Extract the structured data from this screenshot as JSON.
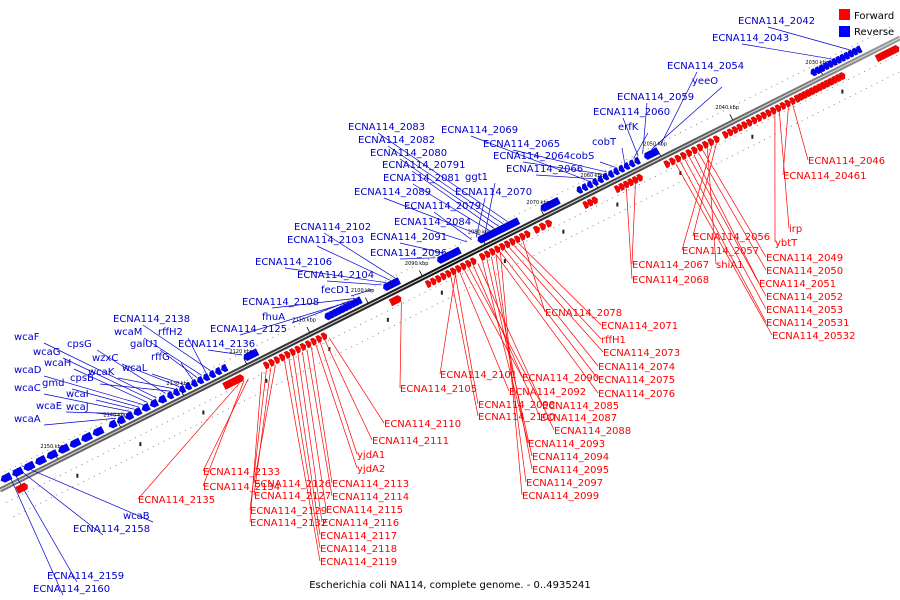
{
  "caption": "Escherichia coli NA114, complete genome. - 0..4935241",
  "legend": {
    "forward_label": "Forward",
    "reverse_label": "Reverse",
    "forward_color": "#ff0000",
    "reverse_color": "#0000ff"
  },
  "ticks": [
    "2030 kbp",
    "2040 kbp",
    "2050 kbp",
    "2060 kbp",
    "2070 kbp",
    "2080 kbp",
    "2090 kbp",
    "2100 kbp",
    "2110 kbp",
    "2120 kbp",
    "2130 kbp",
    "2140 kbp",
    "2150 kbp"
  ],
  "reverse_labels": [
    "ECNA114_2042",
    "ECNA114_2043",
    "ECNA114_2054",
    "yeeO",
    "ECNA114_2059",
    "ECNA114_2060",
    "erfK",
    "cobT",
    "ECNA114_2065",
    "ECNA114_2064",
    "cobS",
    "ECNA114_2066",
    "ECNA114_2069",
    "ECNA114_2083",
    "ECNA114_2082",
    "ECNA114_2080",
    "ECNA114_20791",
    "ECNA114_2081",
    "ggt1",
    "ECNA114_2089",
    "ECNA114_2070",
    "ECNA114_2079",
    "ECNA114_2084",
    "ECNA114_2091",
    "ECNA114_2096",
    "ECNA114_2102",
    "ECNA114_2103",
    "ECNA114_2106",
    "ECNA114_2104",
    "fecD1",
    "ECNA114_2108",
    "fhuA",
    "ECNA114_2125",
    "ECNA114_2136",
    "ECNA114_2138",
    "rffH2",
    "wcaM",
    "galU1",
    "rffG",
    "wcaL",
    "wzxC",
    "wcaK",
    "cpsB",
    "cpsG",
    "wcaF",
    "wcaG",
    "wcaH",
    "wcaD",
    "gmd",
    "wcaI",
    "wcaC",
    "wcaE",
    "wcaJ",
    "wcaA",
    "wcaB",
    "ECNA114_2158",
    "ECNA114_2159",
    "ECNA114_2160"
  ],
  "forward_labels": [
    "ECNA114_2046",
    "ECNA114_20461",
    "irp",
    "ybtT",
    "ECNA114_2056",
    "ECNA114_2057",
    "shiA1",
    "ECNA114_2049",
    "ECNA114_2050",
    "ECNA114_2051",
    "ECNA114_2052",
    "ECNA114_2053",
    "ECNA114_20531",
    "ECNA114_20532",
    "ECNA114_2067",
    "ECNA114_2068",
    "ECNA114_2078",
    "ECNA114_2071",
    "rffH1",
    "ECNA114_2073",
    "ECNA114_2074",
    "ECNA114_2075",
    "ECNA114_2076",
    "ECNA114_2105",
    "ECNA114_2101",
    "ECNA114_2090",
    "ECNA114_2092",
    "ECNA114_2098",
    "ECNA114_2085",
    "ECNA114_2100",
    "ECNA114_2087",
    "ECNA114_2088",
    "ECNA114_2093",
    "ECNA114_2094",
    "ECNA114_2095",
    "ECNA114_2097",
    "ECNA114_2099",
    "ECNA114_2110",
    "ECNA114_2111",
    "yjdA1",
    "yjdA2",
    "ECNA114_2113",
    "ECNA114_2114",
    "ECNA114_2115",
    "ECNA114_2116",
    "ECNA114_2117",
    "ECNA114_2118",
    "ECNA114_2119",
    "ECNA114_2126",
    "ECNA114_2127",
    "ECNA114_2129",
    "ECNA114_2132",
    "ECNA114_2133",
    "ECNA114_2134",
    "ECNA114_2135"
  ]
}
